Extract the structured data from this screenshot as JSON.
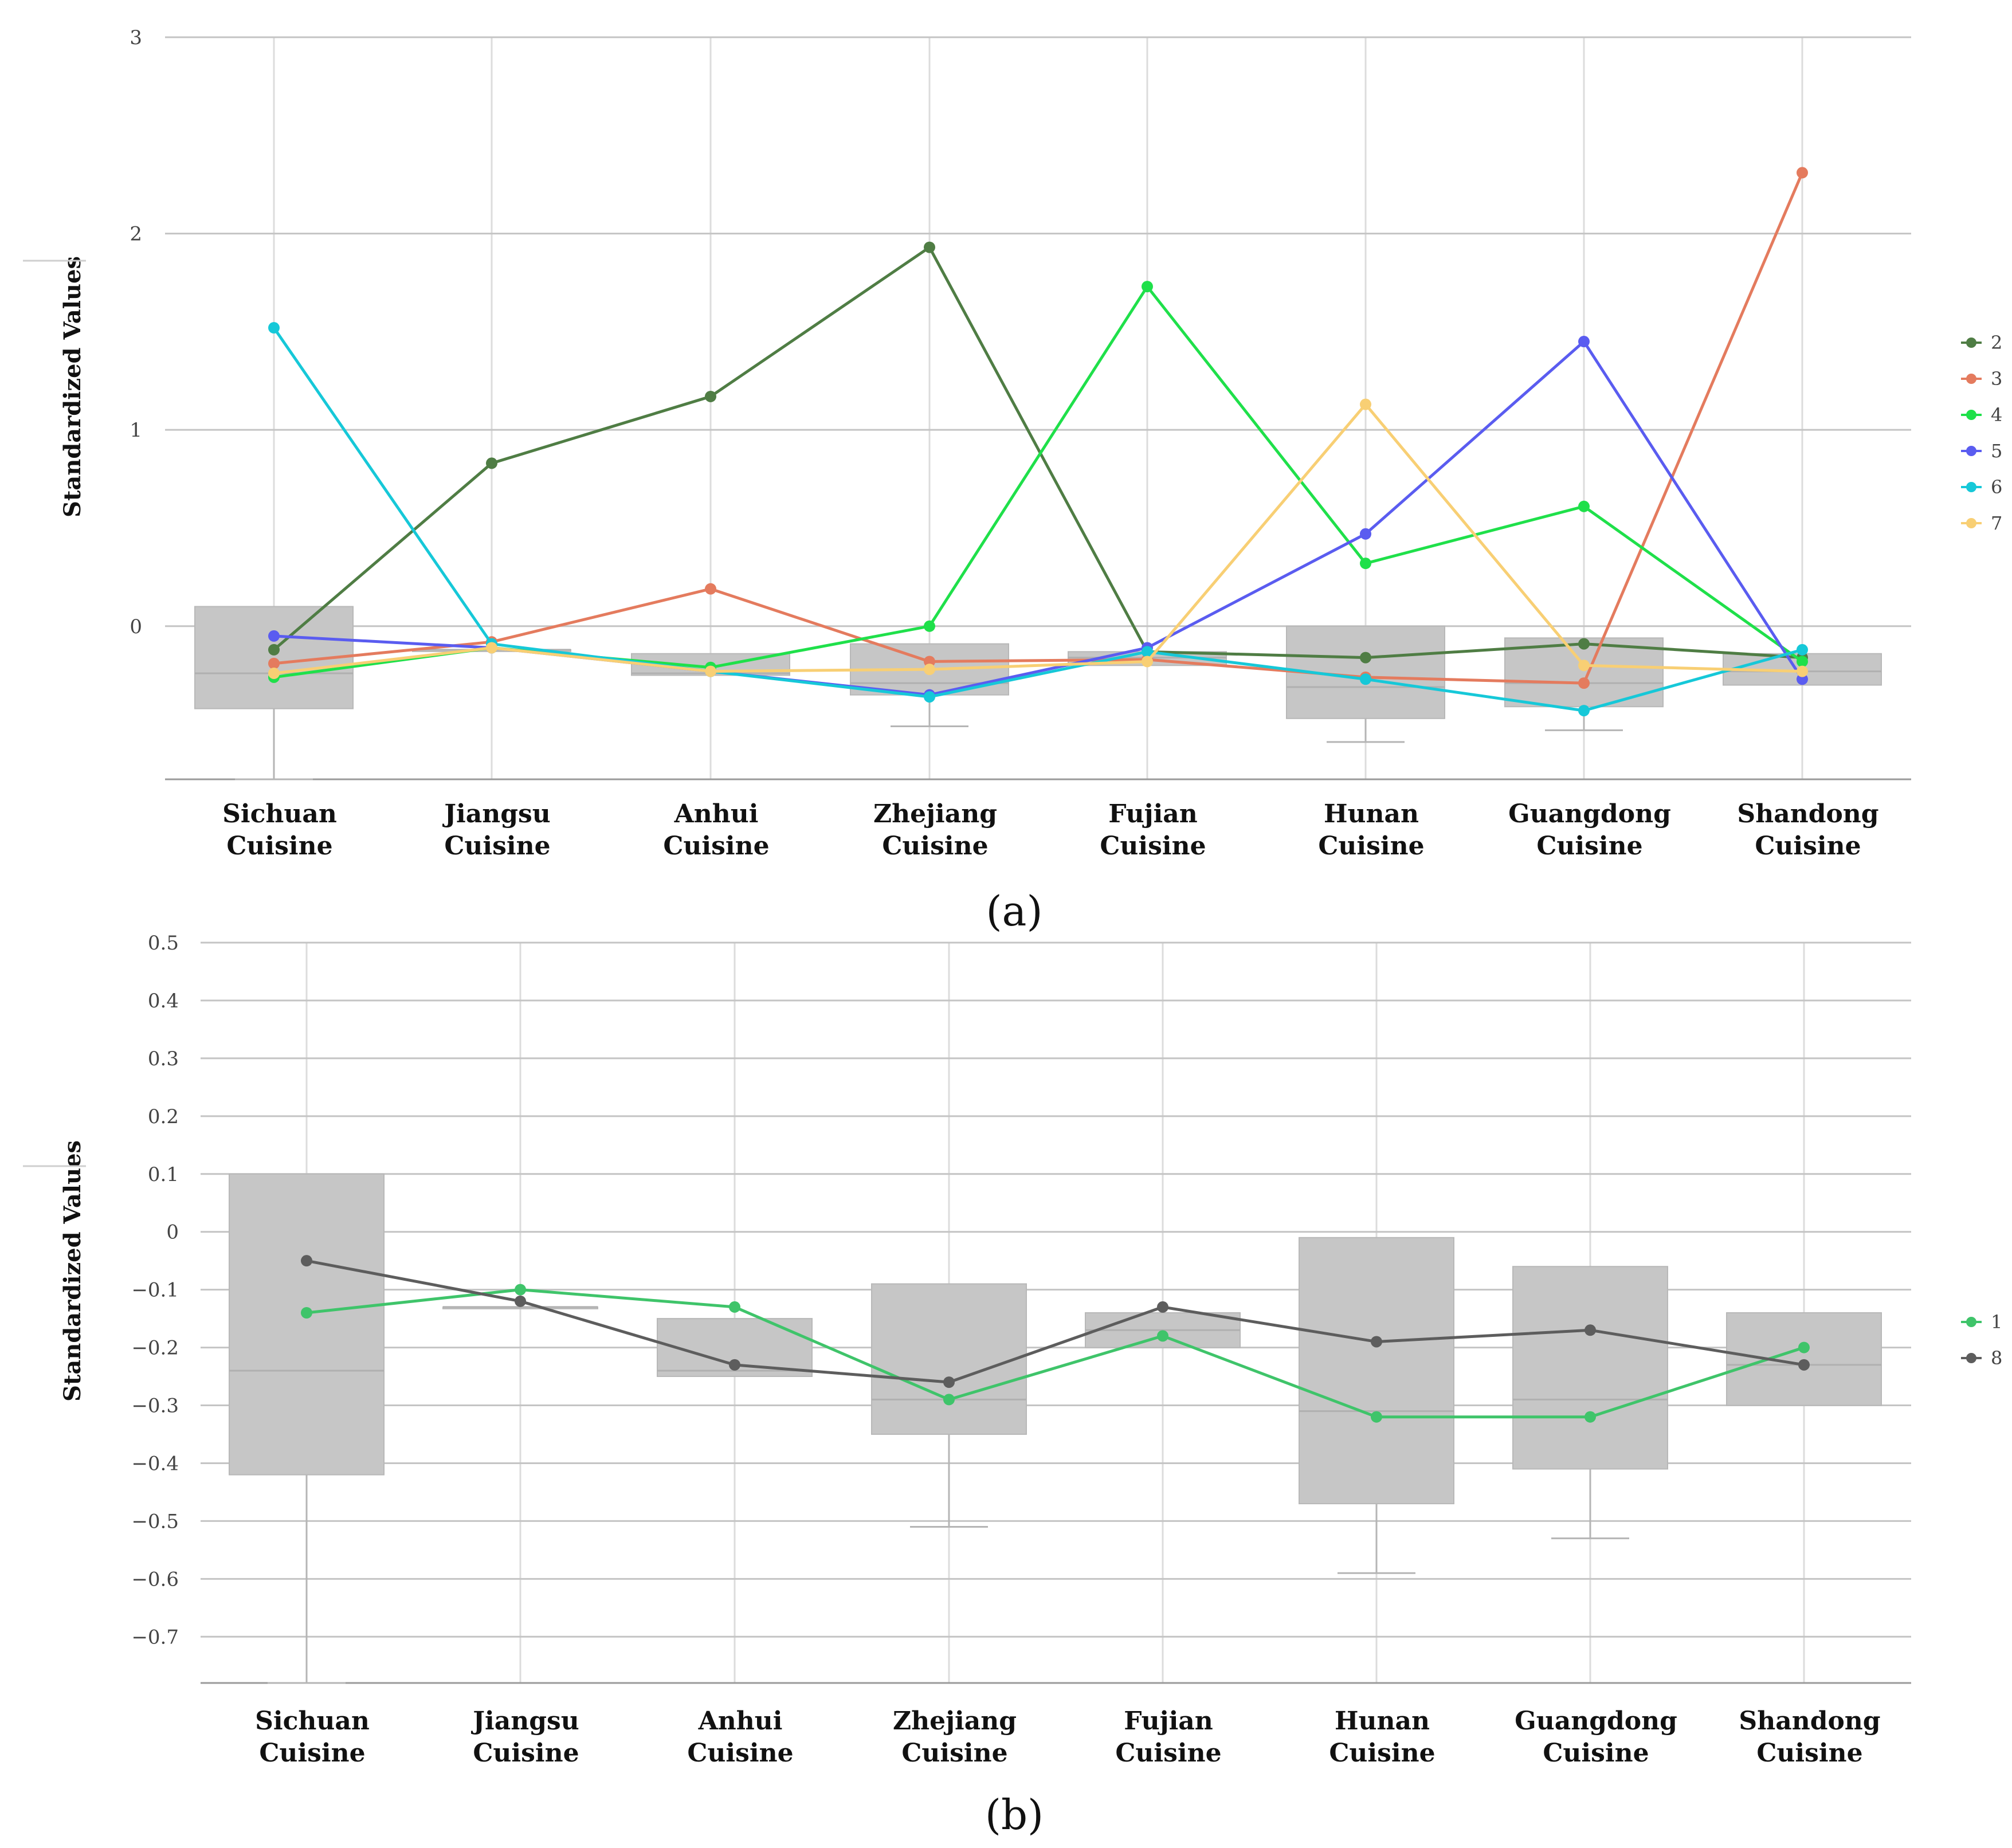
{
  "chart_data": [
    {
      "type": "line",
      "panel_label": "(a)",
      "ylabel": "Standardized Values",
      "categories": [
        "Sichuan Cuisine",
        "Jiangsu Cuisine",
        "Anhui Cuisine",
        "Zhejiang Cuisine",
        "Fujian Cuisine",
        "Hunan Cuisine",
        "Guangdong Cuisine",
        "Shandong Cuisine"
      ],
      "category_lines": [
        [
          "Sichuan",
          "Cuisine"
        ],
        [
          "Jiangsu",
          "Cuisine"
        ],
        [
          "Anhui",
          "Cuisine"
        ],
        [
          "Zhejiang",
          "Cuisine"
        ],
        [
          "Fujian",
          "Cuisine"
        ],
        [
          "Hunan",
          "Cuisine"
        ],
        [
          "Guangdong",
          "Cuisine"
        ],
        [
          "Shandong",
          "Cuisine"
        ]
      ],
      "ylim": [
        -0.78,
        3
      ],
      "yticks": [
        0,
        1,
        2,
        3
      ],
      "ytick_labels": [
        "0",
        "1",
        "2",
        "3"
      ],
      "legend_position": "right",
      "boxes": [
        {
          "q1": -0.42,
          "q3": 0.1,
          "median": -0.24,
          "min": -0.78,
          "max": 0.1
        },
        {
          "q1": -0.12,
          "q3": -0.12,
          "median": -0.12,
          "min": -0.12,
          "max": -0.12
        },
        {
          "q1": -0.25,
          "q3": -0.14,
          "median": -0.24,
          "min": -0.25,
          "max": -0.14
        },
        {
          "q1": -0.35,
          "q3": -0.09,
          "median": -0.29,
          "min": -0.51,
          "max": -0.09
        },
        {
          "q1": -0.2,
          "q3": -0.13,
          "median": -0.16,
          "min": -0.2,
          "max": -0.13
        },
        {
          "q1": -0.47,
          "q3": 0.0,
          "median": -0.31,
          "min": -0.59,
          "max": 0.0
        },
        {
          "q1": -0.41,
          "q3": -0.06,
          "median": -0.29,
          "min": -0.53,
          "max": -0.06
        },
        {
          "q1": -0.3,
          "q3": -0.14,
          "median": -0.23,
          "min": -0.3,
          "max": -0.14
        }
      ],
      "series": [
        {
          "name": "2",
          "color": "#4f7d44",
          "values": [
            -0.12,
            0.83,
            1.17,
            1.93,
            -0.13,
            -0.16,
            -0.09,
            -0.16
          ]
        },
        {
          "name": "3",
          "color": "#e47b5e",
          "values": [
            -0.19,
            -0.08,
            0.19,
            -0.18,
            -0.17,
            -0.26,
            -0.29,
            2.31
          ]
        },
        {
          "name": "4",
          "color": "#1fe04a",
          "values": [
            -0.26,
            -0.11,
            -0.21,
            0.0,
            1.73,
            0.32,
            0.61,
            -0.18
          ]
        },
        {
          "name": "5",
          "color": "#5a5cf0",
          "values": [
            -0.05,
            -0.11,
            -0.23,
            -0.35,
            -0.11,
            0.47,
            1.45,
            -0.27
          ]
        },
        {
          "name": "6",
          "color": "#16c8d8",
          "values": [
            1.52,
            -0.09,
            -0.23,
            -0.36,
            -0.13,
            -0.27,
            -0.43,
            -0.12
          ]
        },
        {
          "name": "7",
          "color": "#f8cf74",
          "values": [
            -0.24,
            -0.11,
            -0.23,
            -0.22,
            -0.18,
            1.13,
            -0.2,
            -0.23
          ]
        }
      ]
    },
    {
      "type": "line",
      "panel_label": "(b)",
      "ylabel": "Standardized Values",
      "categories": [
        "Sichuan Cuisine",
        "Jiangsu Cuisine",
        "Anhui Cuisine",
        "Zhejiang Cuisine",
        "Fujian Cuisine",
        "Hunan Cuisine",
        "Guangdong Cuisine",
        "Shandong Cuisine"
      ],
      "category_lines": [
        [
          "Sichuan",
          "Cuisine"
        ],
        [
          "Jiangsu",
          "Cuisine"
        ],
        [
          "Anhui",
          "Cuisine"
        ],
        [
          "Zhejiang",
          "Cuisine"
        ],
        [
          "Fujian",
          "Cuisine"
        ],
        [
          "Hunan",
          "Cuisine"
        ],
        [
          "Guangdong",
          "Cuisine"
        ],
        [
          "Shandong",
          "Cuisine"
        ]
      ],
      "ylim": [
        -0.78,
        0.5
      ],
      "yticks": [
        0.5,
        0.4,
        0.3,
        0.2,
        0.1,
        0,
        -0.1,
        -0.2,
        -0.3,
        -0.4,
        -0.5,
        -0.6,
        -0.7
      ],
      "ytick_labels": [
        "0.5",
        "0.4",
        "0.3",
        "0.2",
        "0.1",
        "0",
        "−0.1",
        "−0.2",
        "−0.3",
        "−0.4",
        "−0.5",
        "−0.6",
        "−0.7"
      ],
      "legend_position": "right",
      "boxes": [
        {
          "q1": -0.42,
          "q3": 0.1,
          "median": -0.24,
          "min": -0.78,
          "max": 0.1
        },
        {
          "q1": -0.13,
          "q3": -0.13,
          "median": -0.13,
          "min": -0.13,
          "max": -0.13
        },
        {
          "q1": -0.25,
          "q3": -0.15,
          "median": -0.24,
          "min": -0.25,
          "max": -0.15
        },
        {
          "q1": -0.35,
          "q3": -0.09,
          "median": -0.29,
          "min": -0.51,
          "max": -0.09
        },
        {
          "q1": -0.2,
          "q3": -0.14,
          "median": -0.17,
          "min": -0.2,
          "max": -0.14
        },
        {
          "q1": -0.47,
          "q3": -0.01,
          "median": -0.31,
          "min": -0.59,
          "max": -0.01
        },
        {
          "q1": -0.41,
          "q3": -0.06,
          "median": -0.29,
          "min": -0.53,
          "max": -0.06
        },
        {
          "q1": -0.3,
          "q3": -0.14,
          "median": -0.23,
          "min": -0.3,
          "max": -0.14
        }
      ],
      "series": [
        {
          "name": "1",
          "color": "#3fc46a",
          "values": [
            -0.14,
            -0.1,
            -0.13,
            -0.29,
            -0.18,
            -0.32,
            -0.32,
            -0.2
          ]
        },
        {
          "name": "8",
          "color": "#5d5d5d",
          "values": [
            -0.05,
            -0.12,
            -0.23,
            -0.26,
            -0.13,
            -0.19,
            -0.17,
            -0.23
          ]
        }
      ]
    }
  ]
}
